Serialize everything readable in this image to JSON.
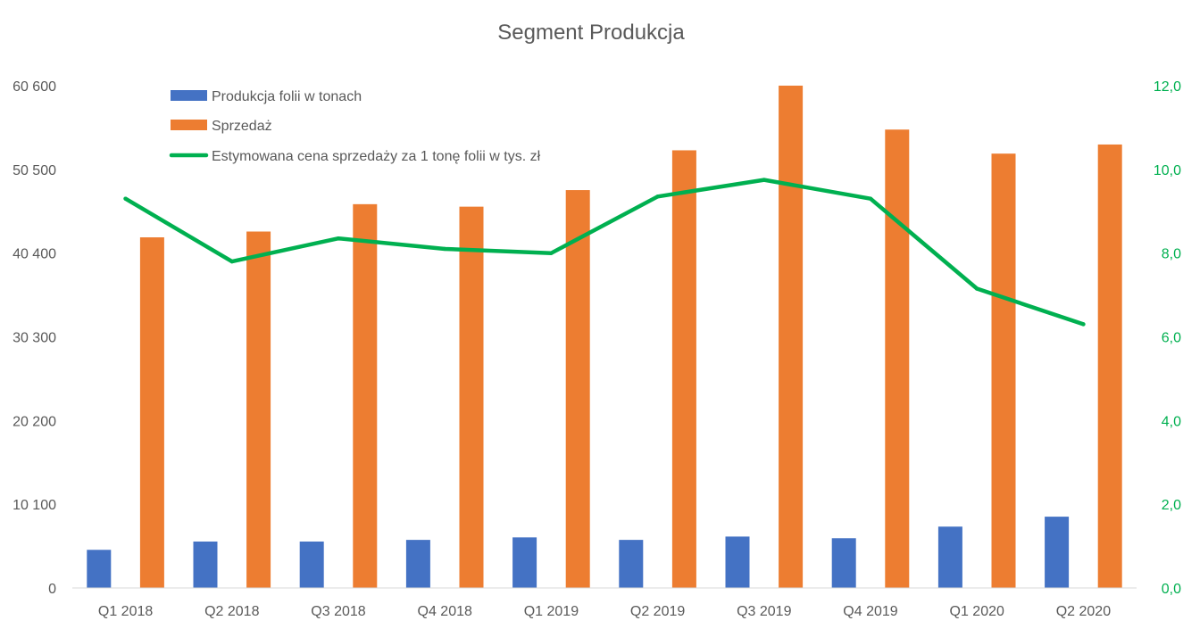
{
  "chart_data": {
    "type": "bar",
    "title": "Segment Produkcja",
    "categories": [
      "Q1 2018",
      "Q2 2018",
      "Q3 2018",
      "Q4 2018",
      "Q1 2019",
      "Q2 2019",
      "Q3 2019",
      "Q4 2019",
      "Q1 2020",
      "Q2 2020"
    ],
    "series": [
      {
        "name": "Produkcja folii w tonach",
        "type": "bar",
        "axis": "left",
        "color": "#4472C4",
        "values": [
          4600,
          5600,
          5600,
          5800,
          6100,
          5800,
          6200,
          6000,
          7400,
          8600
        ]
      },
      {
        "name": "Sprzedaż",
        "type": "bar",
        "axis": "left",
        "color": "#ED7D31",
        "values": [
          42300,
          43000,
          46300,
          46000,
          48000,
          52800,
          60600,
          55300,
          52400,
          53500
        ]
      },
      {
        "name": "Estymowana cena sprzedaży za 1 tonę folii w tys. zł",
        "type": "line",
        "axis": "right",
        "color": "#00B050",
        "values": [
          9.3,
          7.8,
          8.35,
          8.1,
          8.0,
          9.35,
          9.75,
          9.3,
          7.15,
          6.3
        ]
      }
    ],
    "y_left": {
      "ylim": [
        0,
        60600
      ],
      "ticks": [
        0,
        10100,
        20200,
        30300,
        40400,
        50500,
        60600
      ],
      "tick_labels": [
        "0",
        "10 100",
        "20 200",
        "30 300",
        "40 400",
        "50 500",
        "60 600"
      ]
    },
    "y_right": {
      "ylim": [
        0,
        12
      ],
      "ticks": [
        0,
        2,
        4,
        6,
        8,
        10,
        12
      ],
      "tick_labels": [
        "0,0",
        "2,0",
        "4,0",
        "6,0",
        "8,0",
        "10,0",
        "12,0"
      ],
      "color": "#00B050"
    },
    "xlabel": "",
    "ylabel": "",
    "grid": false,
    "legend": "top-left"
  }
}
